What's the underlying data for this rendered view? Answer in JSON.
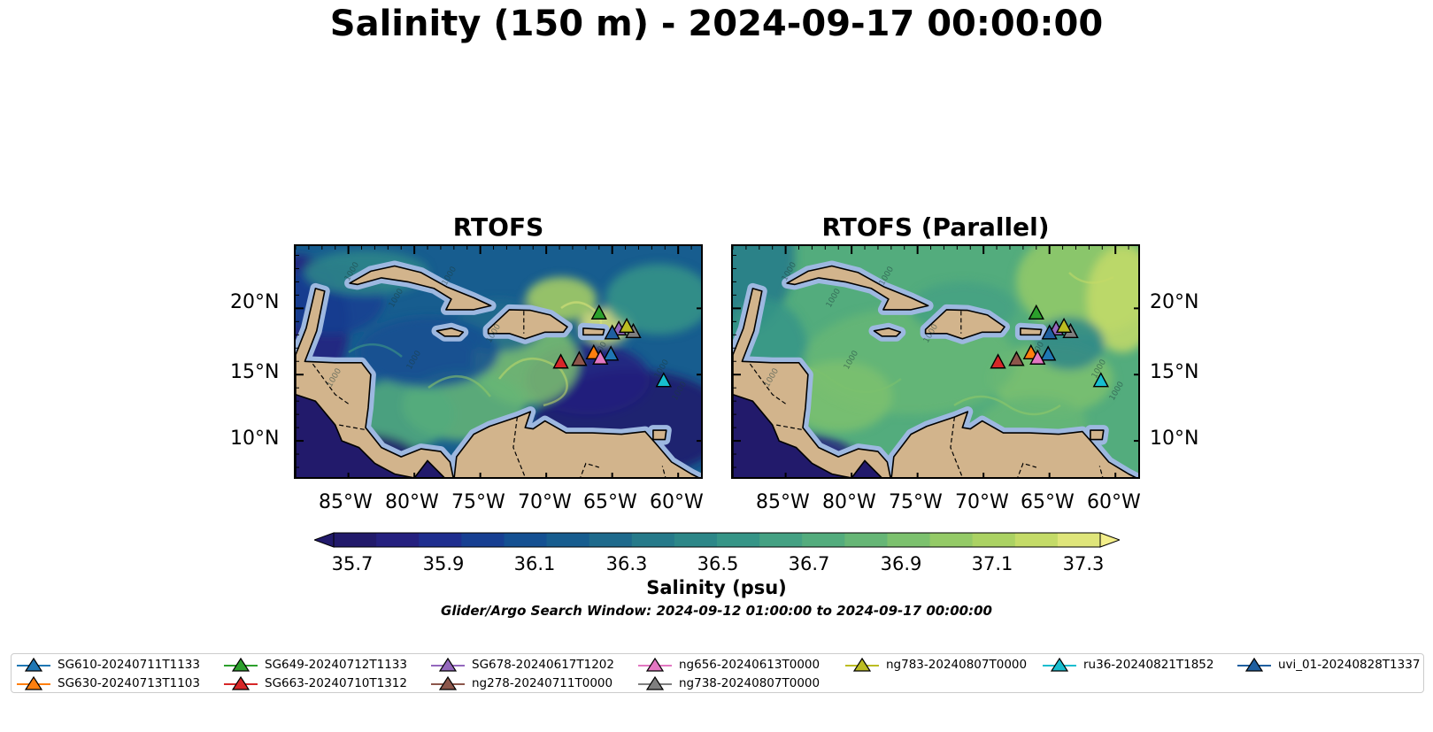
{
  "title": "Salinity (150 m) - 2024-09-17 00:00:00",
  "panels": [
    {
      "title": "RTOFS",
      "variant": "operational"
    },
    {
      "title": "RTOFS (Parallel)",
      "variant": "parallel"
    }
  ],
  "axes": {
    "lon_labels": [
      "85°W",
      "80°W",
      "75°W",
      "70°W",
      "65°W",
      "60°W"
    ],
    "lat_labels": [
      "20°N",
      "15°N",
      "10°N"
    ]
  },
  "colorbar": {
    "ticks": [
      "35.7",
      "35.9",
      "36.1",
      "36.3",
      "36.5",
      "36.7",
      "36.9",
      "37.1",
      "37.3"
    ],
    "label": "Salinity (psu)",
    "colors": [
      "#221a6b",
      "#25207f",
      "#1f2e8f",
      "#173f92",
      "#145092",
      "#175d8f",
      "#1e6a8c",
      "#267a8a",
      "#2d8788",
      "#369587",
      "#44a183",
      "#53ac7d",
      "#66b676",
      "#7cc16e",
      "#94ca67",
      "#abd263",
      "#c4db68",
      "#dfe57a"
    ]
  },
  "search_window": "Glider/Argo Search Window: 2024-09-12 01:00:00 to 2024-09-17 00:00:00",
  "gliders": [
    {
      "name": "SG610-20240711T1133",
      "color": "#1f77b4",
      "lon": -65.1,
      "lat": 16.5
    },
    {
      "name": "SG630-20240713T1103",
      "color": "#ff7f0e",
      "lon": -66.4,
      "lat": 16.6
    },
    {
      "name": "SG649-20240712T1133",
      "color": "#2ca02c",
      "lon": -66.0,
      "lat": 19.6
    },
    {
      "name": "SG663-20240710T1312",
      "color": "#d62728",
      "lon": -68.9,
      "lat": 15.9
    },
    {
      "name": "SG678-20240617T1202",
      "color": "#9467bd",
      "lon": -64.5,
      "lat": 18.4
    },
    {
      "name": "ng278-20240711T0000",
      "color": "#8c564b",
      "lon": -67.5,
      "lat": 16.1
    },
    {
      "name": "ng656-20240613T0000",
      "color": "#e377c2",
      "lon": -65.9,
      "lat": 16.2
    },
    {
      "name": "ng738-20240807T0000",
      "color": "#7f7f7f",
      "lon": -63.4,
      "lat": 18.2
    },
    {
      "name": "ng783-20240807T0000",
      "color": "#bcbd22",
      "lon": -63.9,
      "lat": 18.6
    },
    {
      "name": "ru36-20240821T1852",
      "color": "#17becf",
      "lon": -61.1,
      "lat": 14.5
    },
    {
      "name": "uvi_01-20240828T1337",
      "color": "#1f5fa0",
      "lon": -65.0,
      "lat": 18.1
    }
  ]
}
